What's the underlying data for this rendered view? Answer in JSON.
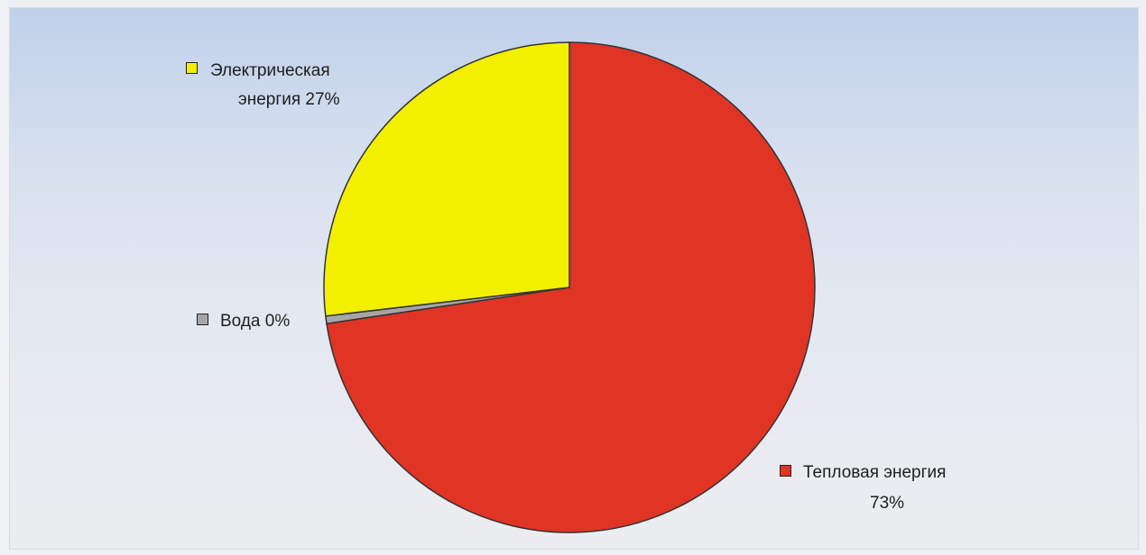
{
  "chart_data": {
    "type": "pie",
    "slices": [
      {
        "label": "Тепловая энергия",
        "value": 73,
        "value_label": "73%",
        "color": "#e03424"
      },
      {
        "label": "Вода",
        "value": 0.5,
        "value_label": "0%",
        "color": "#a6a6a6"
      },
      {
        "label": "Электрическая энергия",
        "value": 27,
        "value_label": "27%",
        "color": "#f2f000"
      }
    ],
    "labels": {
      "electric_line1": "Электрическая",
      "electric_line2": "энергия 27%",
      "water": "Вода 0%",
      "heat_line1": "Тепловая энергия",
      "heat_line2": "73%"
    }
  }
}
